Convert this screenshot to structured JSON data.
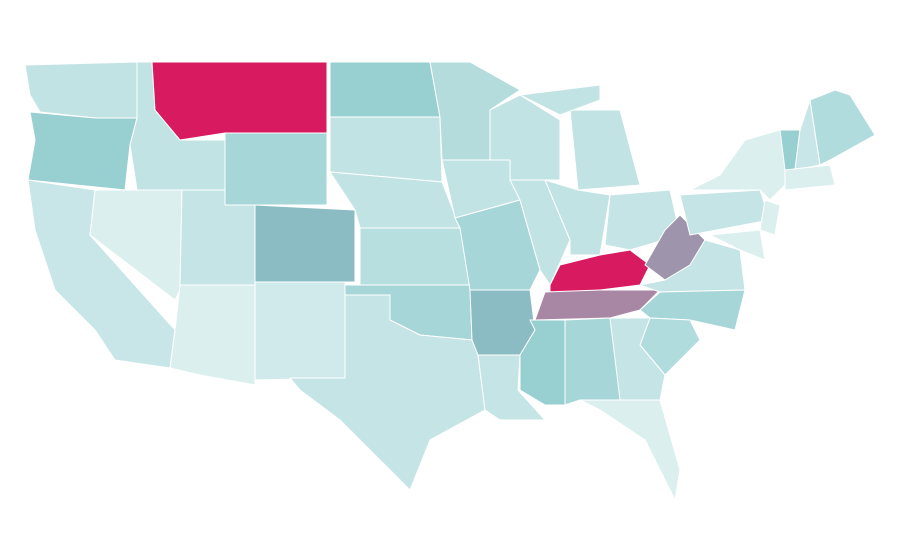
{
  "map": {
    "regions": [
      {
        "color": "#c2e3e4"
      },
      {
        "color": "#98cfd1"
      },
      {
        "color": "#c8e6e7"
      },
      {
        "color": "#dcefef"
      },
      {
        "color": "#c2e3e4"
      },
      {
        "color": "#d81b60"
      },
      {
        "color": "#a6d6d8"
      },
      {
        "color": "#c5e4e5"
      },
      {
        "color": "#dcefef"
      },
      {
        "color": "#8bbcc3"
      },
      {
        "color": "#d0eaeb"
      },
      {
        "color": "#98cfd1"
      },
      {
        "color": "#c2e3e4"
      },
      {
        "color": "#c2e3e4"
      },
      {
        "color": "#b8dfe0"
      },
      {
        "color": "#a6d6d8"
      },
      {
        "color": "#c5e4e5"
      },
      {
        "color": "#b4dcdd"
      },
      {
        "color": "#c2e3e4"
      },
      {
        "color": "#a6d6d8"
      },
      {
        "color": "#8bbcc3"
      },
      {
        "color": "#c5e4e5"
      },
      {
        "color": "#c2e3e4"
      },
      {
        "color": "#c2e3e4"
      },
      {
        "color": "#c2e3e4"
      },
      {
        "color": "#c2e3e4"
      },
      {
        "color": "#c2e3e4"
      },
      {
        "color": "#c5e4e5"
      },
      {
        "color": "#d81b60"
      },
      {
        "color": "#a887a5"
      },
      {
        "color": "#9e95ad"
      },
      {
        "color": "#c5e4e5"
      },
      {
        "color": "#a6d6d8"
      },
      {
        "color": "#b0dcdd"
      },
      {
        "color": "#c5e4e5"
      },
      {
        "color": "#a6d6d8"
      },
      {
        "color": "#98cfd1"
      },
      {
        "color": "#dcefef"
      },
      {
        "color": "#c5e4e5"
      },
      {
        "color": "#dcefef"
      },
      {
        "color": "#98cfd1"
      },
      {
        "color": "#c8e6e7"
      },
      {
        "color": "#b0dcdd"
      },
      {
        "color": "#dcefef"
      },
      {
        "color": "#dcefef"
      },
      {
        "color": "#dcefef"
      }
    ]
  }
}
